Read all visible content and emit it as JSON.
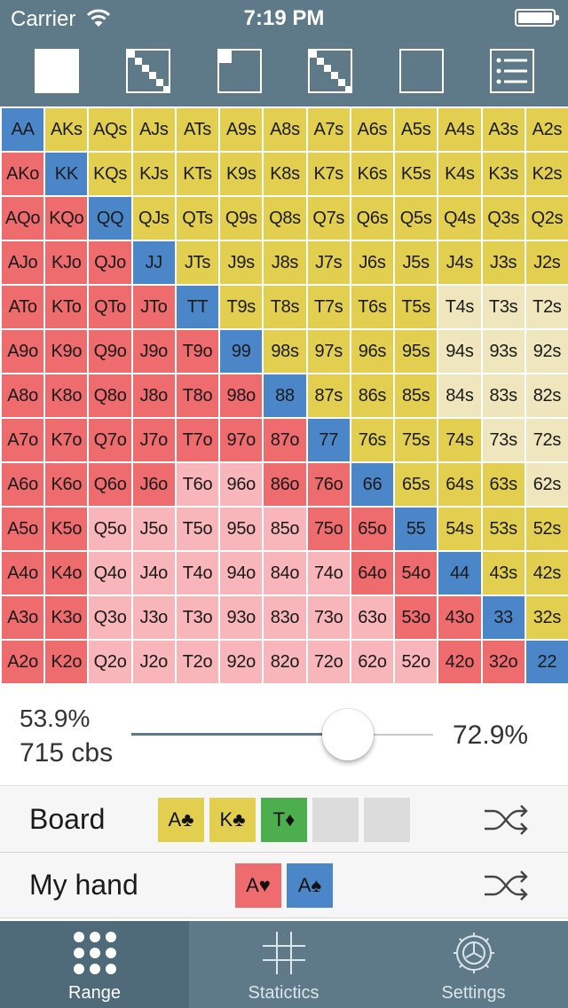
{
  "status_bar": {
    "carrier": "Carrier",
    "time": "7:19 PM"
  },
  "toolbar": {
    "buttons": [
      {
        "icon": "filled-square-icon"
      },
      {
        "icon": "diagonal-pairs-icon"
      },
      {
        "icon": "corner-square-icon"
      },
      {
        "icon": "triangle-suited-icon"
      },
      {
        "icon": "empty-square-icon"
      },
      {
        "icon": "list-icon"
      }
    ]
  },
  "grid": {
    "rows": [
      [
        "AA",
        "AKs",
        "AQs",
        "AJs",
        "ATs",
        "A9s",
        "A8s",
        "A7s",
        "A6s",
        "A5s",
        "A4s",
        "A3s",
        "A2s"
      ],
      [
        "AKo",
        "KK",
        "KQs",
        "KJs",
        "KTs",
        "K9s",
        "K8s",
        "K7s",
        "K6s",
        "K5s",
        "K4s",
        "K3s",
        "K2s"
      ],
      [
        "AQo",
        "KQo",
        "QQ",
        "QJs",
        "QTs",
        "Q9s",
        "Q8s",
        "Q7s",
        "Q6s",
        "Q5s",
        "Q4s",
        "Q3s",
        "Q2s"
      ],
      [
        "AJo",
        "KJo",
        "QJo",
        "JJ",
        "JTs",
        "J9s",
        "J8s",
        "J7s",
        "J6s",
        "J5s",
        "J4s",
        "J3s",
        "J2s"
      ],
      [
        "ATo",
        "KTo",
        "QTo",
        "JTo",
        "TT",
        "T9s",
        "T8s",
        "T7s",
        "T6s",
        "T5s",
        "T4s",
        "T3s",
        "T2s"
      ],
      [
        "A9o",
        "K9o",
        "Q9o",
        "J9o",
        "T9o",
        "99",
        "98s",
        "97s",
        "96s",
        "95s",
        "94s",
        "93s",
        "92s"
      ],
      [
        "A8o",
        "K8o",
        "Q8o",
        "J8o",
        "T8o",
        "98o",
        "88",
        "87s",
        "86s",
        "85s",
        "84s",
        "83s",
        "82s"
      ],
      [
        "A7o",
        "K7o",
        "Q7o",
        "J7o",
        "T7o",
        "97o",
        "87o",
        "77",
        "76s",
        "75s",
        "74s",
        "73s",
        "72s"
      ],
      [
        "A6o",
        "K6o",
        "Q6o",
        "J6o",
        "T6o",
        "96o",
        "86o",
        "76o",
        "66",
        "65s",
        "64s",
        "63s",
        "62s"
      ],
      [
        "A5o",
        "K5o",
        "Q5o",
        "J5o",
        "T5o",
        "95o",
        "85o",
        "75o",
        "65o",
        "55",
        "54s",
        "53s",
        "52s"
      ],
      [
        "A4o",
        "K4o",
        "Q4o",
        "J4o",
        "T4o",
        "94o",
        "84o",
        "74o",
        "64o",
        "54o",
        "44",
        "43s",
        "42s"
      ],
      [
        "A3o",
        "K3o",
        "Q3o",
        "J3o",
        "T3o",
        "93o",
        "83o",
        "73o",
        "63o",
        "53o",
        "43o",
        "33",
        "32s"
      ],
      [
        "A2o",
        "K2o",
        "Q2o",
        "J2o",
        "T2o",
        "92o",
        "82o",
        "72o",
        "62o",
        "52o",
        "42o",
        "32o",
        "22"
      ]
    ],
    "selected_offsuit": [
      "AKo",
      "AQo",
      "KQo",
      "AJo",
      "KJo",
      "QJo",
      "ATo",
      "KTo",
      "QTo",
      "JTo",
      "A9o",
      "K9o",
      "Q9o",
      "J9o",
      "T9o",
      "A8o",
      "K8o",
      "Q8o",
      "J8o",
      "T8o",
      "98o",
      "A7o",
      "K7o",
      "Q7o",
      "J7o",
      "T7o",
      "97o",
      "87o",
      "A6o",
      "K6o",
      "Q6o",
      "J6o",
      "86o",
      "76o",
      "A5o",
      "K5o",
      "75o",
      "65o",
      "A4o",
      "K4o",
      "64o",
      "54o",
      "A3o",
      "K3o",
      "53o",
      "43o",
      "A2o",
      "K2o",
      "42o",
      "32o"
    ],
    "unselected_suited": [
      "T4s",
      "T3s",
      "T2s",
      "94s",
      "93s",
      "92s",
      "84s",
      "83s",
      "82s",
      "73s",
      "72s",
      "62s"
    ],
    "colors": {
      "pair": "#4a86c8",
      "suited": "#e3cf4f",
      "suited_unselected": "#f0e6bd",
      "offsuit": "#ee6b6e",
      "offsuit_unselected": "#f8b6ba"
    }
  },
  "slider": {
    "range_percent": "53.9%",
    "combos": "715 cbs",
    "value_percent": "72.9%",
    "position": 0.72
  },
  "board": {
    "label": "Board",
    "cards": [
      {
        "text": "A♣",
        "color": "yellow"
      },
      {
        "text": "K♣",
        "color": "yellow"
      },
      {
        "text": "T♦",
        "color": "green"
      },
      {
        "text": "",
        "color": "empty"
      },
      {
        "text": "",
        "color": "empty"
      }
    ]
  },
  "hand": {
    "label": "My hand",
    "cards": [
      {
        "text": "A♥",
        "color": "red"
      },
      {
        "text": "A♠",
        "color": "blue"
      }
    ]
  },
  "tabbar": {
    "tabs": [
      {
        "label": "Range",
        "icon": "dots-grid-icon",
        "active": true
      },
      {
        "label": "Statictics",
        "icon": "hash-grid-icon",
        "active": false
      },
      {
        "label": "Settings",
        "icon": "gear-icon",
        "active": false
      }
    ]
  }
}
